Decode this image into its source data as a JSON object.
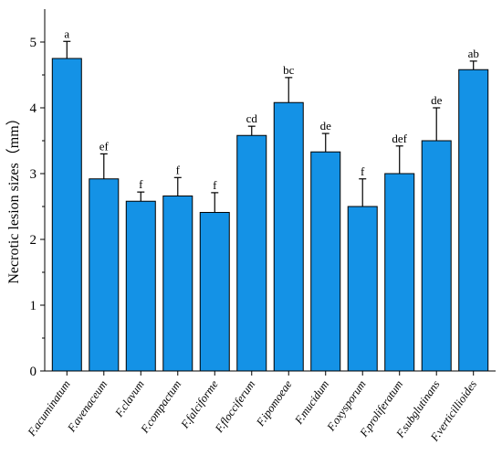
{
  "chart_data": {
    "type": "bar",
    "ylabel": "Necrotic lesion sizes（mm）",
    "xlabel": "",
    "ylim": [
      0,
      5.5
    ],
    "yticks": [
      "0",
      "1",
      "2",
      "3",
      "4",
      "5"
    ],
    "grid": false,
    "bar_color": "#1492E6",
    "categories": [
      "F.acuminatum",
      "F.avenaceum",
      "F.clavum",
      "F.compactum",
      "F.falciforme",
      "F.flocciferum",
      "F.ipomoeae",
      "F.mucidum",
      "F.oxysporum",
      "F.proliferatum",
      "F.subglutinans",
      "F.verticillioides"
    ],
    "values": [
      4.75,
      2.92,
      2.58,
      2.66,
      2.41,
      3.58,
      4.08,
      3.33,
      2.5,
      3.0,
      3.5,
      4.58
    ],
    "errors": [
      0.26,
      0.38,
      0.14,
      0.28,
      0.3,
      0.14,
      0.38,
      0.28,
      0.42,
      0.42,
      0.5,
      0.13
    ],
    "significance": [
      "a",
      "ef",
      "f",
      "f",
      "f",
      "cd",
      "bc",
      "de",
      "f",
      "def",
      "de",
      "ab"
    ]
  }
}
